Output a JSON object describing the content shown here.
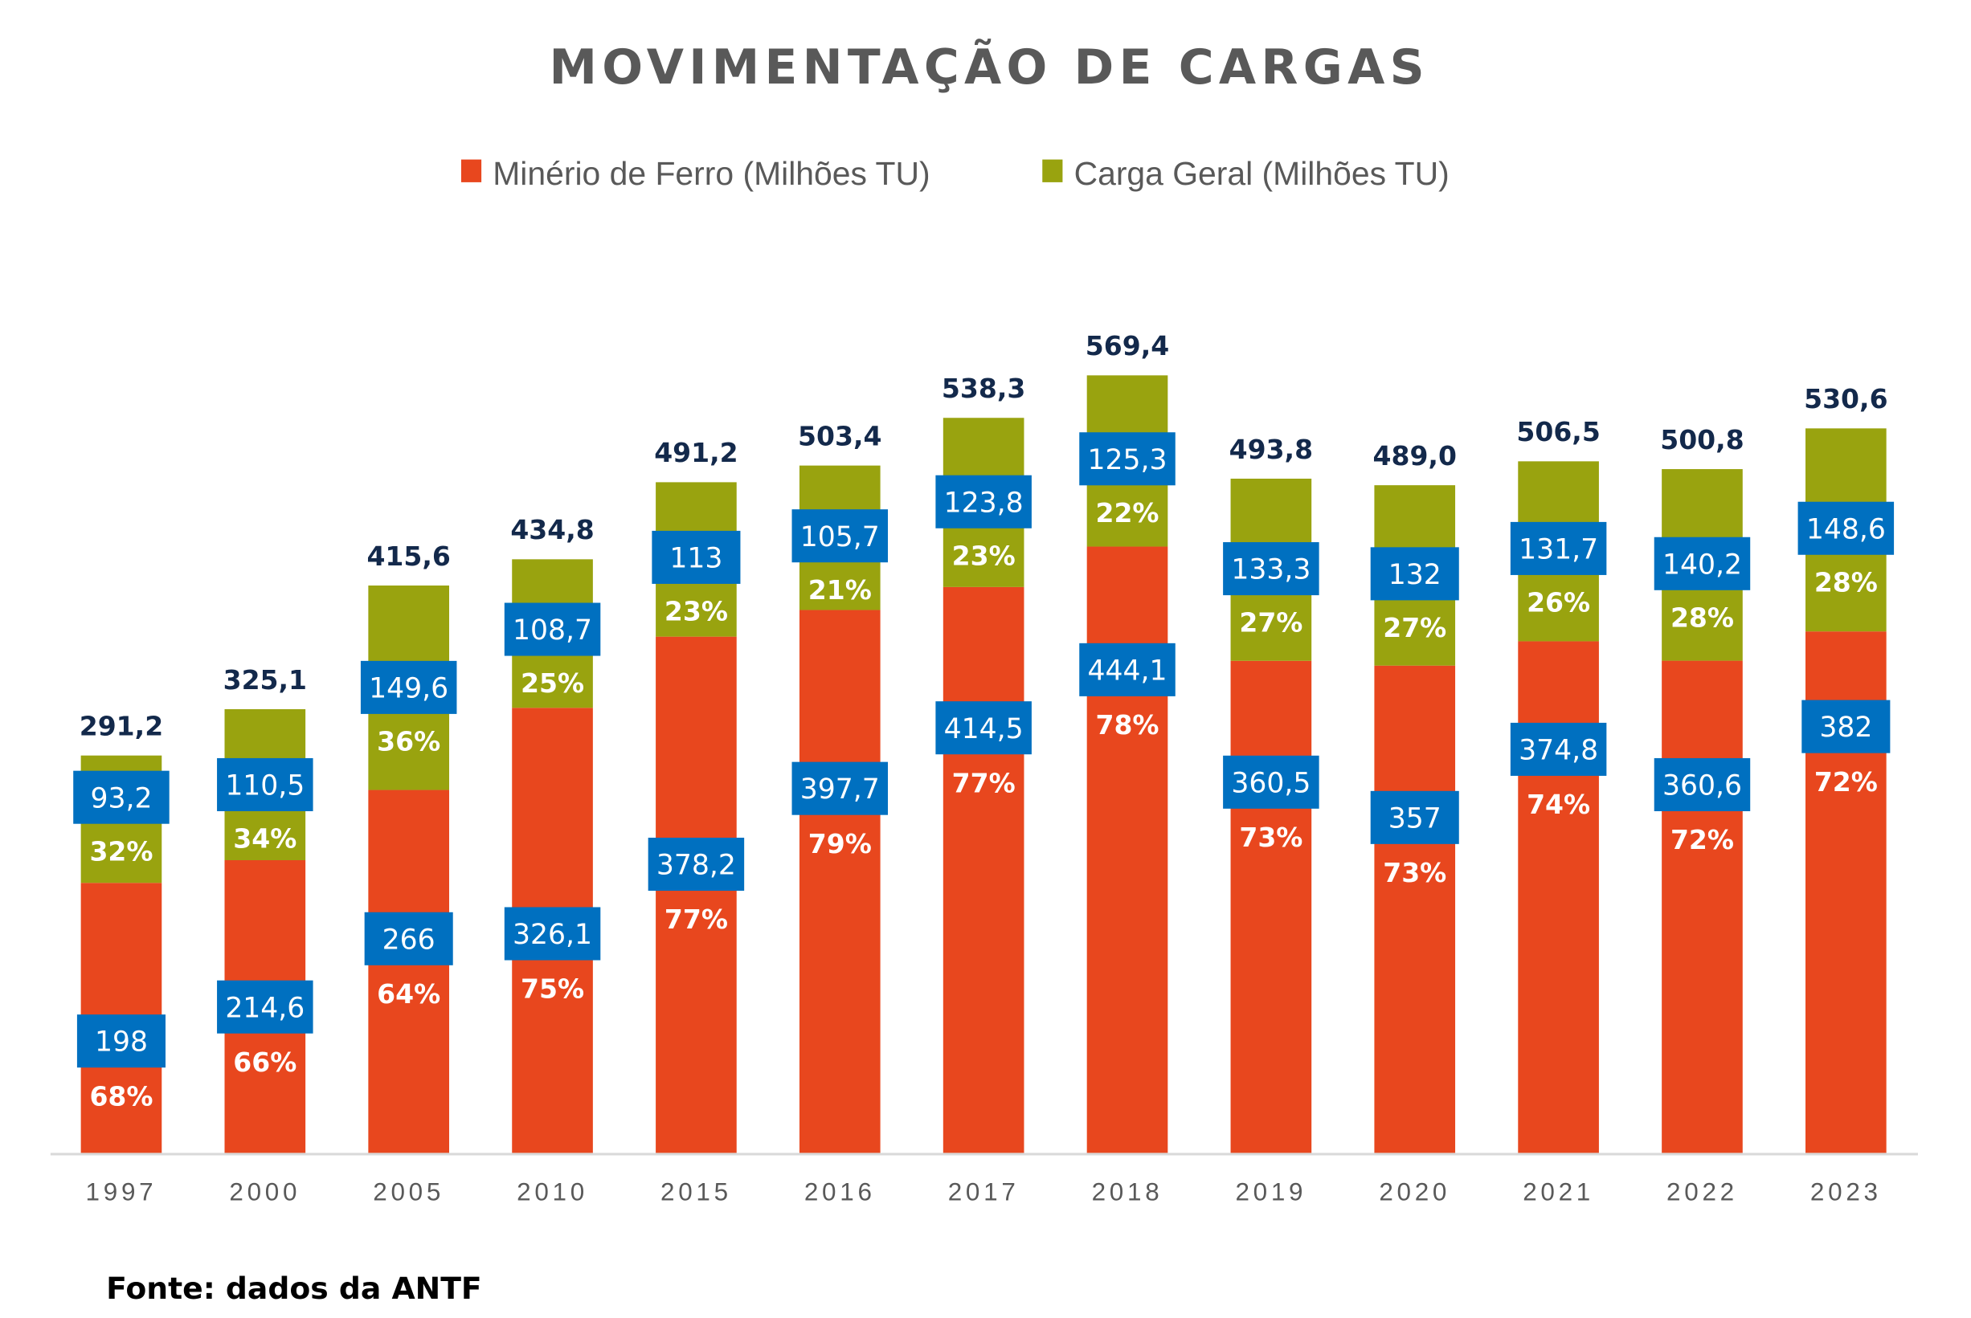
{
  "colors": {
    "ore": "#E8471E",
    "cargo": "#99A30F",
    "label_box": "#0070C0",
    "total": "#13294B"
  },
  "chart_data": {
    "type": "bar",
    "stacked": true,
    "title": "MOVIMENTAÇÃO DE CARGAS",
    "xlabel": "",
    "ylabel": "",
    "legend_position": "top-center",
    "grid": false,
    "categories": [
      "1997",
      "2000",
      "2005",
      "2010",
      "2015",
      "2016",
      "2017",
      "2018",
      "2019",
      "2020",
      "2021",
      "2022",
      "2023"
    ],
    "series": [
      {
        "name": "Minério de Ferro (Milhões TU)",
        "values": [
          198,
          214.6,
          266,
          326.1,
          378.2,
          397.7,
          414.5,
          444.1,
          360.5,
          357,
          374.8,
          360.6,
          382
        ],
        "labels": [
          "198",
          "214,6",
          "266",
          "326,1",
          "378,2",
          "397,7",
          "414,5",
          "444,1",
          "360,5",
          "357",
          "374,8",
          "360,6",
          "382"
        ],
        "percent_labels": [
          "68%",
          "66%",
          "64%",
          "75%",
          "77%",
          "79%",
          "77%",
          "78%",
          "73%",
          "73%",
          "74%",
          "72%",
          "72%"
        ]
      },
      {
        "name": "Carga Geral (Milhões TU)",
        "values": [
          93.2,
          110.5,
          149.6,
          108.7,
          113,
          105.7,
          123.8,
          125.3,
          133.3,
          132,
          131.7,
          140.2,
          148.6
        ],
        "labels": [
          "93,2",
          "110,5",
          "149,6",
          "108,7",
          "113",
          "105,7",
          "123,8",
          "125,3",
          "133,3",
          "132",
          "131,7",
          "140,2",
          "148,6"
        ],
        "percent_labels": [
          "32%",
          "34%",
          "36%",
          "25%",
          "23%",
          "21%",
          "23%",
          "22%",
          "27%",
          "27%",
          "26%",
          "28%",
          "28%"
        ]
      }
    ],
    "totals": [
      "291,2",
      "325,1",
      "415,6",
      "434,8",
      "491,2",
      "503,4",
      "538,3",
      "569,4",
      "493,8",
      "489,0",
      "506,5",
      "500,8",
      "530,6"
    ],
    "ylim": [
      0,
      600
    ]
  },
  "source": "Fonte: dados da ANTF"
}
